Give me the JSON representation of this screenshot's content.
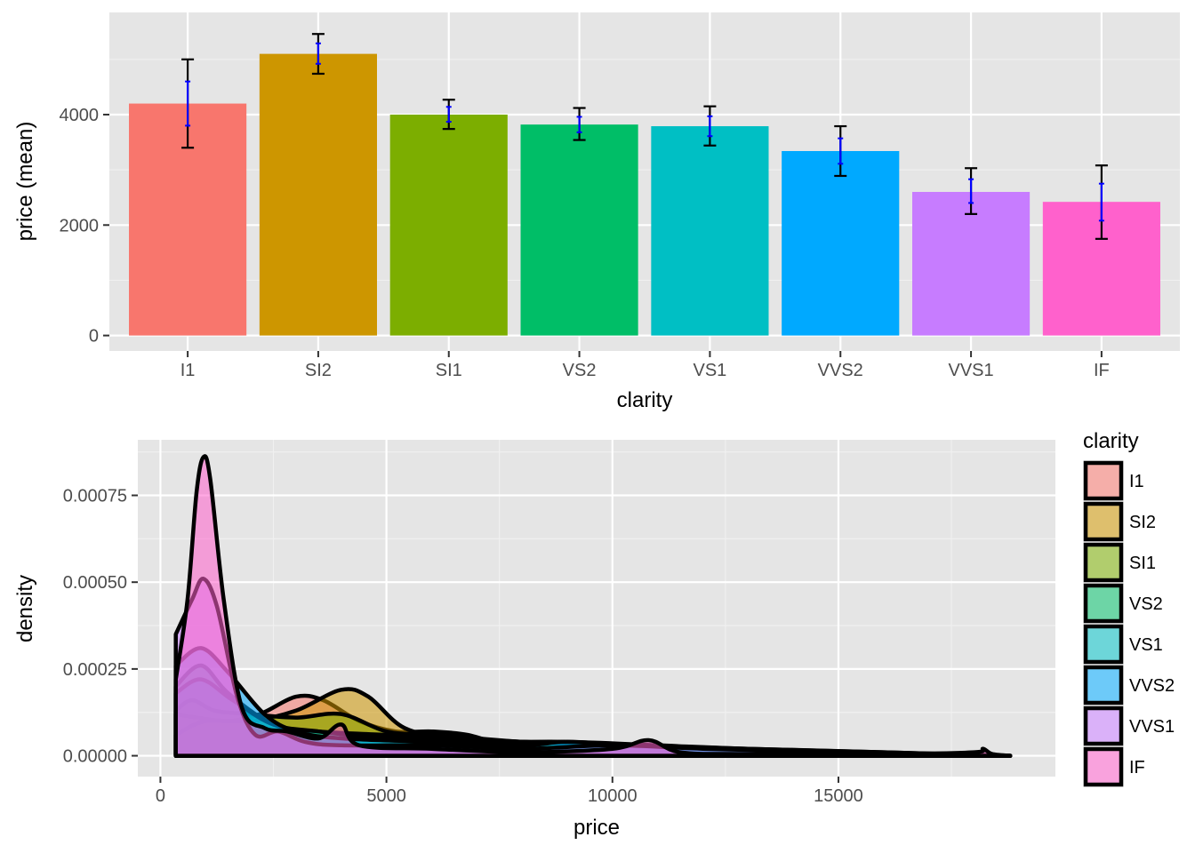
{
  "colors": {
    "panel_bg": "#e5e5e5",
    "grid_major": "#ffffff",
    "grid_minor": "#f0f0f0",
    "errorbar_outer": "#000000",
    "errorbar_inner": "#0000ff",
    "density_outline": "#000000"
  },
  "chart_data": [
    {
      "type": "bar",
      "xlabel": "clarity",
      "ylabel": "price (mean)",
      "categories": [
        "I1",
        "SI2",
        "SI1",
        "VS2",
        "VS1",
        "VVS2",
        "VVS1",
        "IF"
      ],
      "values": [
        4200,
        5100,
        4000,
        3820,
        3790,
        3340,
        2600,
        2420
      ],
      "colors": [
        "#F8766D",
        "#CD9600",
        "#7CAE00",
        "#00BE67",
        "#00BFC4",
        "#00A9FF",
        "#C77CFF",
        "#FF61CC"
      ],
      "error_outer": [
        [
          3400,
          5000
        ],
        [
          4740,
          5460
        ],
        [
          3740,
          4270
        ],
        [
          3540,
          4120
        ],
        [
          3440,
          4150
        ],
        [
          2890,
          3790
        ],
        [
          2200,
          3030
        ],
        [
          1750,
          3080
        ]
      ],
      "error_inner": [
        [
          3800,
          4600
        ],
        [
          4920,
          5290
        ],
        [
          3870,
          4140
        ],
        [
          3680,
          3960
        ],
        [
          3610,
          3970
        ],
        [
          3110,
          3570
        ],
        [
          2400,
          2830
        ],
        [
          2080,
          2750
        ]
      ],
      "ylim": [
        -280,
        5850
      ],
      "yticks": [
        0,
        2000,
        4000
      ],
      "yticklabels": [
        "0",
        "2000",
        "4000"
      ],
      "grid": true
    },
    {
      "type": "area",
      "xlabel": "price",
      "ylabel": "density",
      "xlim": [
        -500,
        19800
      ],
      "ylim": [
        -6e-05,
        0.00091
      ],
      "xticks": [
        0,
        5000,
        10000,
        15000
      ],
      "xticklabels": [
        "0",
        "5000",
        "10000",
        "15000"
      ],
      "yticks": [
        0,
        0.00025,
        0.0005,
        0.00075
      ],
      "yticklabels": [
        "0.00000",
        "0.00025",
        "0.00050",
        "0.00075"
      ],
      "grid": true,
      "fill_opacity": 0.55,
      "legend": {
        "title": "clarity",
        "position": "right",
        "entries": [
          "I1",
          "SI2",
          "SI1",
          "VS2",
          "VS1",
          "VVS2",
          "VVS1",
          "IF"
        ],
        "colors": [
          "#F8766D",
          "#CD9600",
          "#7CAE00",
          "#00BE67",
          "#00BFC4",
          "#00A9FF",
          "#C77CFF",
          "#FF61CC"
        ]
      },
      "series": [
        {
          "name": "I1",
          "color": "#F8766D",
          "points": [
            [
              340,
              0
            ],
            [
              340,
              0.00012
            ],
            [
              800,
              0.00011
            ],
            [
              1500,
              0.0001
            ],
            [
              2200,
              0.00012
            ],
            [
              3000,
              0.00017
            ],
            [
              3600,
              0.00016
            ],
            [
              4400,
              0.0001
            ],
            [
              5200,
              7e-05
            ],
            [
              6000,
              7e-05
            ],
            [
              6800,
              6e-05
            ],
            [
              7600,
              3e-05
            ],
            [
              8500,
              1.5e-05
            ],
            [
              10000,
              1e-05
            ],
            [
              12000,
              7e-06
            ],
            [
              15000,
              4e-06
            ],
            [
              18800,
              0
            ]
          ]
        },
        {
          "name": "SI2",
          "color": "#CD9600",
          "points": [
            [
              340,
              0
            ],
            [
              340,
              6e-05
            ],
            [
              1000,
              0.0001
            ],
            [
              2000,
              0.0001
            ],
            [
              3000,
              0.00013
            ],
            [
              4000,
              0.00019
            ],
            [
              4600,
              0.00017
            ],
            [
              5400,
              8e-05
            ],
            [
              6500,
              5e-05
            ],
            [
              8000,
              4e-05
            ],
            [
              10000,
              3e-05
            ],
            [
              12000,
              2e-05
            ],
            [
              15000,
              1e-05
            ],
            [
              18800,
              0
            ]
          ]
        },
        {
          "name": "SI1",
          "color": "#7CAE00",
          "points": [
            [
              340,
              0
            ],
            [
              340,
              0.00013
            ],
            [
              700,
              0.00016
            ],
            [
              1200,
              0.00013
            ],
            [
              2000,
              0.00012
            ],
            [
              3000,
              0.00011
            ],
            [
              4000,
              0.00012
            ],
            [
              5000,
              7e-05
            ],
            [
              6000,
              6e-05
            ],
            [
              7000,
              5e-05
            ],
            [
              8000,
              4e-05
            ],
            [
              10000,
              3e-05
            ],
            [
              12000,
              2e-05
            ],
            [
              15000,
              1e-05
            ],
            [
              18800,
              0
            ]
          ]
        },
        {
          "name": "VS2",
          "color": "#00BE67",
          "points": [
            [
              340,
              0
            ],
            [
              340,
              0.0002
            ],
            [
              900,
              0.00026
            ],
            [
              1500,
              0.00018
            ],
            [
              2500,
              9e-05
            ],
            [
              3500,
              7e-05
            ],
            [
              5000,
              6e-05
            ],
            [
              6500,
              5e-05
            ],
            [
              8000,
              4e-05
            ],
            [
              10000,
              3e-05
            ],
            [
              12000,
              2e-05
            ],
            [
              15000,
              1e-05
            ],
            [
              18800,
              0
            ]
          ]
        },
        {
          "name": "VS1",
          "color": "#00BFC4",
          "points": [
            [
              340,
              0
            ],
            [
              340,
              0.00018
            ],
            [
              900,
              0.00022
            ],
            [
              1600,
              0.00016
            ],
            [
              2500,
              9e-05
            ],
            [
              3500,
              7e-05
            ],
            [
              5000,
              5e-05
            ],
            [
              7000,
              4e-05
            ],
            [
              9000,
              4e-05
            ],
            [
              11000,
              3e-05
            ],
            [
              13000,
              2e-05
            ],
            [
              16000,
              1e-05
            ],
            [
              18800,
              0
            ]
          ]
        },
        {
          "name": "VVS2",
          "color": "#00A9FF",
          "points": [
            [
              340,
              0
            ],
            [
              340,
              0.00026
            ],
            [
              900,
              0.00031
            ],
            [
              1500,
              0.00024
            ],
            [
              2300,
              0.00012
            ],
            [
              3000,
              7e-05
            ],
            [
              4000,
              5e-05
            ],
            [
              6000,
              4e-05
            ],
            [
              8000,
              3e-05
            ],
            [
              9000,
              4e-05
            ],
            [
              10500,
              3e-05
            ],
            [
              13000,
              2e-05
            ],
            [
              16000,
              1e-05
            ],
            [
              18800,
              0
            ]
          ]
        },
        {
          "name": "VVS1",
          "color": "#C77CFF",
          "points": [
            [
              340,
              0
            ],
            [
              340,
              0.00035
            ],
            [
              700,
              0.00045
            ],
            [
              950,
              0.00051
            ],
            [
              1250,
              0.00043
            ],
            [
              1700,
              0.00017
            ],
            [
              2100,
              6e-05
            ],
            [
              2600,
              7e-05
            ],
            [
              3200,
              4e-05
            ],
            [
              4000,
              3e-05
            ],
            [
              6000,
              3e-05
            ],
            [
              8000,
              2e-05
            ],
            [
              10000,
              3e-05
            ],
            [
              12000,
              2e-05
            ],
            [
              15000,
              1e-05
            ],
            [
              18800,
              0
            ]
          ]
        },
        {
          "name": "IF",
          "color": "#FF61CC",
          "points": [
            [
              340,
              0
            ],
            [
              340,
              0.00022
            ],
            [
              600,
              0.00045
            ],
            [
              800,
              0.00076
            ],
            [
              950,
              0.00086
            ],
            [
              1100,
              0.0008
            ],
            [
              1400,
              0.00045
            ],
            [
              1800,
              0.00014
            ],
            [
              2300,
              8e-05
            ],
            [
              2800,
              7e-05
            ],
            [
              3500,
              5e-05
            ],
            [
              4000,
              9e-05
            ],
            [
              4400,
              3e-05
            ],
            [
              6000,
              2e-05
            ],
            [
              8000,
              1e-05
            ],
            [
              10000,
              2e-05
            ],
            [
              10800,
              4.5e-05
            ],
            [
              11500,
              1e-05
            ],
            [
              13000,
              5e-06
            ],
            [
              16000,
              5e-06
            ],
            [
              18000,
              1e-05
            ],
            [
              18200,
              2e-05
            ],
            [
              18400,
              5e-06
            ],
            [
              18800,
              0
            ]
          ]
        }
      ]
    }
  ]
}
